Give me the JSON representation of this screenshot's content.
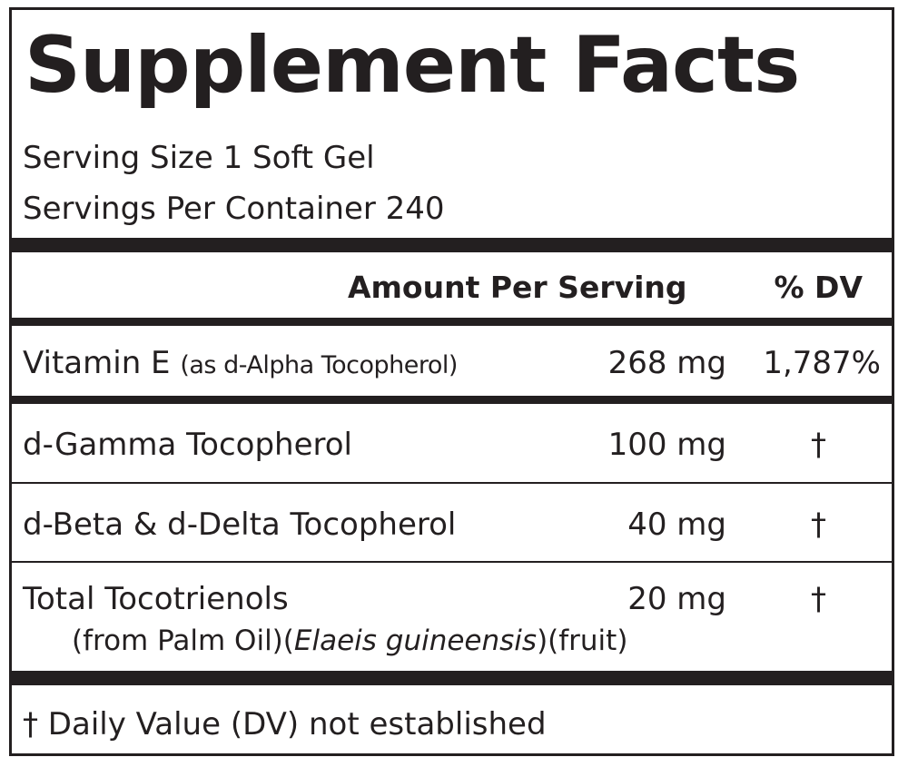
{
  "panel": {
    "title": "Supplement Facts",
    "serving_size": "Serving Size 1 Soft Gel",
    "servings_per_container": "Servings Per Container 240"
  },
  "columns": {
    "amount_header": "Amount Per Serving",
    "dv_header": "% DV"
  },
  "rows": [
    {
      "name": "Vitamin E",
      "qualifier": "(as d-Alpha Tocopherol)",
      "amount": "268 mg",
      "dv": "1,787%"
    },
    {
      "name": "d-Gamma Tocopherol",
      "amount": "100 mg",
      "dv": "†"
    },
    {
      "name": "d-Beta & d-Delta Tocopherol",
      "amount": "40 mg",
      "dv": "†"
    },
    {
      "name": "Total Tocotrienols",
      "amount": "20 mg",
      "dv": "†",
      "source_prefix": "(from Palm Oil)(",
      "source_species": "Elaeis guineensis",
      "source_suffix": ")(fruit)"
    }
  ],
  "footnote": "† Daily Value (DV) not established",
  "colors": {
    "ink": "#231f20",
    "background": "#ffffff"
  }
}
